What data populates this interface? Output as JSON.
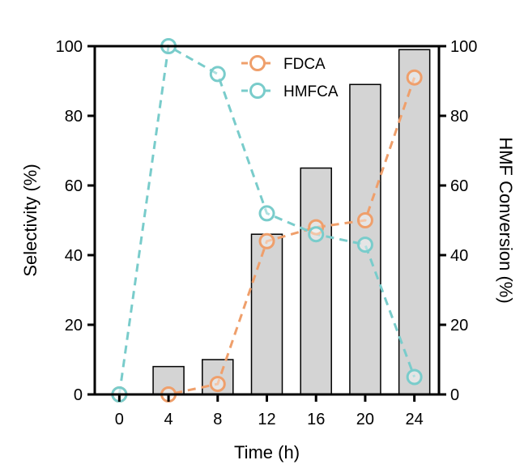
{
  "chart_data": {
    "type": "bar",
    "categories": [
      "0",
      "4",
      "8",
      "12",
      "16",
      "20",
      "24"
    ],
    "xlabel": "Time (h)",
    "ylabel": "Selectivity (%)",
    "y2label": "HMF Conversion (%)",
    "ylim": [
      0,
      100
    ],
    "y2lim": [
      0,
      100
    ],
    "yticks": [
      "0",
      "20",
      "40",
      "60",
      "80",
      "100"
    ],
    "y2ticks": [
      "0",
      "20",
      "40",
      "60",
      "80",
      "100"
    ],
    "grid": false,
    "legend_position": "top-center",
    "bars": {
      "axis": "right",
      "values": [
        0,
        8,
        10,
        46,
        65,
        89,
        99
      ],
      "color": "#d4d4d4"
    },
    "series": [
      {
        "name": "FDCA",
        "axis": "left",
        "values": [
          0,
          0,
          3,
          44,
          48,
          50,
          91
        ],
        "color": "#ef9f6b"
      },
      {
        "name": "HMFCA",
        "axis": "left",
        "values": [
          0,
          100,
          92,
          52,
          46,
          43,
          5
        ],
        "color": "#79cccb"
      }
    ]
  }
}
